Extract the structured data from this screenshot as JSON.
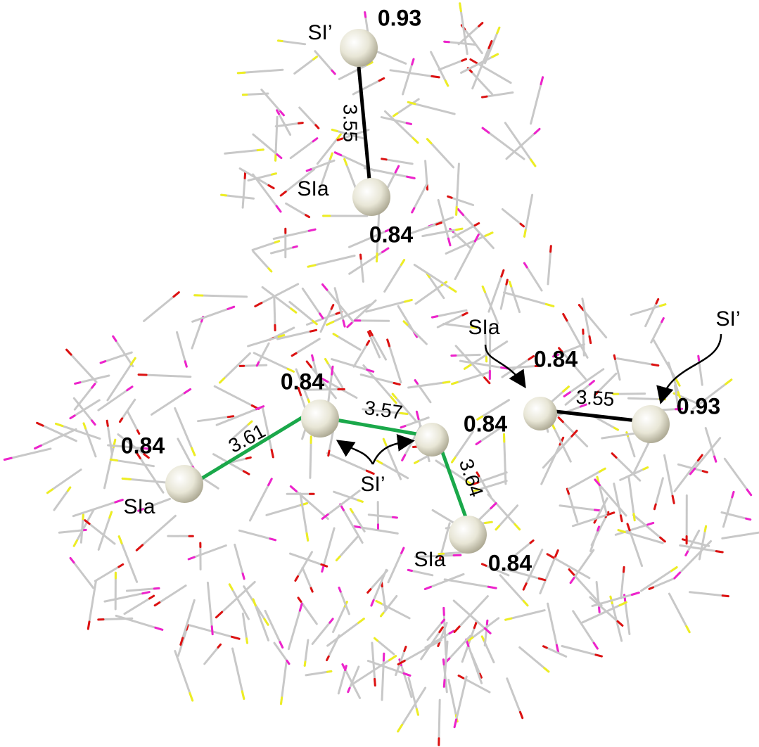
{
  "site_labels": [
    "SI’",
    "SIa",
    "SIa",
    "SI’",
    "SIa",
    "SIa",
    "SI’"
  ],
  "occupancies": [
    "0.93",
    "0.84",
    "0.84",
    "0.84",
    "0.84",
    "0.84",
    "0.84",
    "0.93"
  ],
  "distances": [
    "3.55",
    "3.61",
    "3.57",
    "3.64",
    "3.55"
  ]
}
